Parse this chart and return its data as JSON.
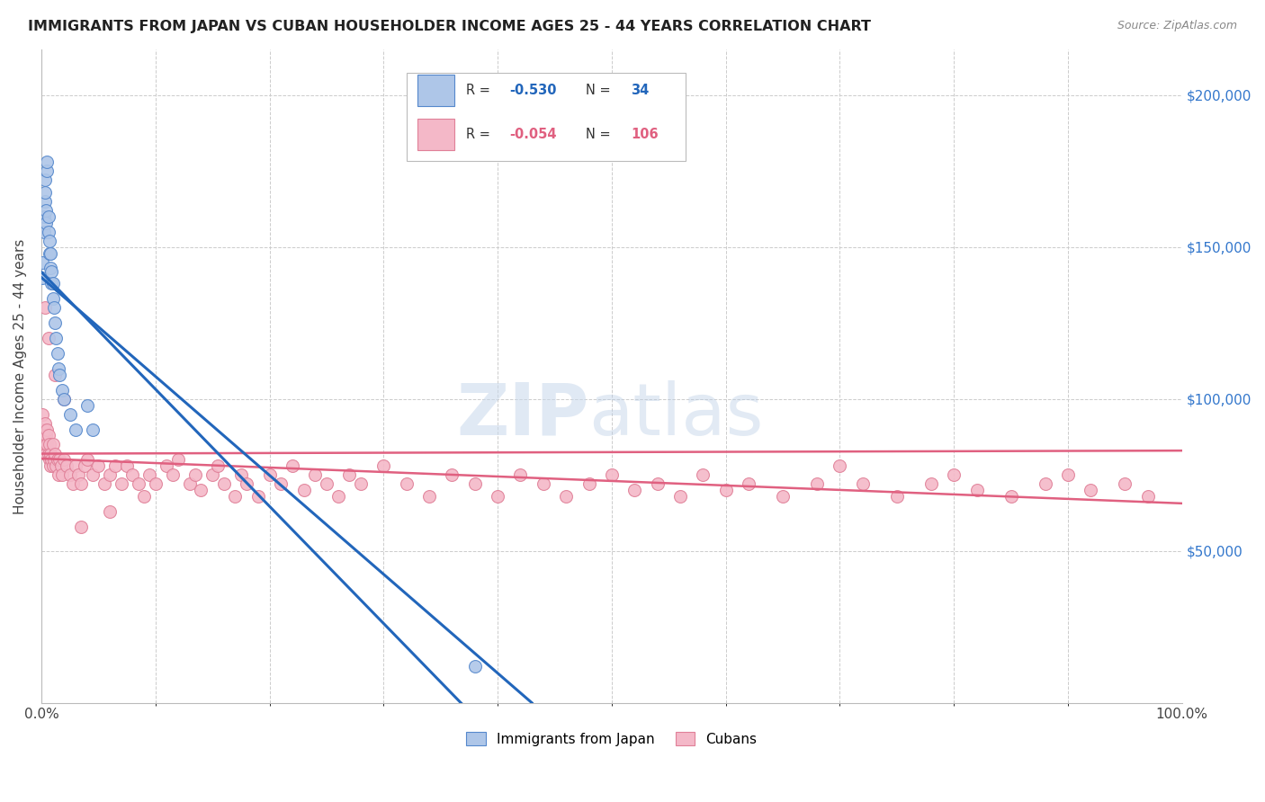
{
  "title": "IMMIGRANTS FROM JAPAN VS CUBAN HOUSEHOLDER INCOME AGES 25 - 44 YEARS CORRELATION CHART",
  "source": "Source: ZipAtlas.com",
  "ylabel": "Householder Income Ages 25 - 44 years",
  "xlim": [
    0.0,
    1.0
  ],
  "ylim": [
    0,
    215000
  ],
  "japan_R": -0.53,
  "japan_N": 34,
  "cuba_R": -0.054,
  "cuba_N": 106,
  "japan_color": "#aec6e8",
  "japan_edge_color": "#5588cc",
  "japan_line_color": "#2266bb",
  "cuba_color": "#f4b8c8",
  "cuba_edge_color": "#e08098",
  "cuba_line_color": "#e06080",
  "background_color": "#ffffff",
  "grid_color": "#cccccc",
  "title_color": "#222222",
  "japan_x": [
    0.001,
    0.001,
    0.002,
    0.002,
    0.003,
    0.003,
    0.003,
    0.004,
    0.004,
    0.005,
    0.005,
    0.006,
    0.006,
    0.007,
    0.007,
    0.008,
    0.008,
    0.009,
    0.009,
    0.01,
    0.01,
    0.011,
    0.012,
    0.013,
    0.014,
    0.015,
    0.016,
    0.018,
    0.02,
    0.025,
    0.03,
    0.04,
    0.045,
    0.38
  ],
  "japan_y": [
    140000,
    145000,
    155000,
    160000,
    165000,
    168000,
    172000,
    158000,
    162000,
    175000,
    178000,
    155000,
    160000,
    148000,
    152000,
    143000,
    148000,
    138000,
    142000,
    133000,
    138000,
    130000,
    125000,
    120000,
    115000,
    110000,
    108000,
    103000,
    100000,
    95000,
    90000,
    98000,
    90000,
    12000
  ],
  "cuba_x": [
    0.001,
    0.002,
    0.002,
    0.003,
    0.003,
    0.004,
    0.004,
    0.005,
    0.005,
    0.006,
    0.006,
    0.007,
    0.007,
    0.008,
    0.008,
    0.009,
    0.01,
    0.01,
    0.011,
    0.012,
    0.013,
    0.014,
    0.015,
    0.016,
    0.017,
    0.018,
    0.02,
    0.022,
    0.025,
    0.028,
    0.03,
    0.032,
    0.035,
    0.038,
    0.04,
    0.045,
    0.05,
    0.055,
    0.06,
    0.065,
    0.07,
    0.075,
    0.08,
    0.085,
    0.09,
    0.095,
    0.1,
    0.11,
    0.115,
    0.12,
    0.13,
    0.135,
    0.14,
    0.15,
    0.155,
    0.16,
    0.17,
    0.175,
    0.18,
    0.19,
    0.2,
    0.21,
    0.22,
    0.23,
    0.24,
    0.25,
    0.26,
    0.27,
    0.28,
    0.3,
    0.32,
    0.34,
    0.36,
    0.38,
    0.4,
    0.42,
    0.44,
    0.46,
    0.48,
    0.5,
    0.52,
    0.54,
    0.56,
    0.58,
    0.6,
    0.62,
    0.65,
    0.68,
    0.7,
    0.72,
    0.75,
    0.78,
    0.8,
    0.82,
    0.85,
    0.88,
    0.9,
    0.92,
    0.95,
    0.97,
    0.003,
    0.006,
    0.012,
    0.02,
    0.035,
    0.06
  ],
  "cuba_y": [
    95000,
    90000,
    88000,
    85000,
    92000,
    88000,
    82000,
    90000,
    85000,
    82000,
    88000,
    80000,
    85000,
    78000,
    82000,
    80000,
    85000,
    78000,
    80000,
    82000,
    78000,
    80000,
    75000,
    80000,
    78000,
    75000,
    80000,
    78000,
    75000,
    72000,
    78000,
    75000,
    72000,
    78000,
    80000,
    75000,
    78000,
    72000,
    75000,
    78000,
    72000,
    78000,
    75000,
    72000,
    68000,
    75000,
    72000,
    78000,
    75000,
    80000,
    72000,
    75000,
    70000,
    75000,
    78000,
    72000,
    68000,
    75000,
    72000,
    68000,
    75000,
    72000,
    78000,
    70000,
    75000,
    72000,
    68000,
    75000,
    72000,
    78000,
    72000,
    68000,
    75000,
    72000,
    68000,
    75000,
    72000,
    68000,
    72000,
    75000,
    70000,
    72000,
    68000,
    75000,
    70000,
    72000,
    68000,
    72000,
    78000,
    72000,
    68000,
    72000,
    75000,
    70000,
    68000,
    72000,
    75000,
    70000,
    72000,
    68000,
    130000,
    120000,
    108000,
    100000,
    58000,
    63000
  ]
}
